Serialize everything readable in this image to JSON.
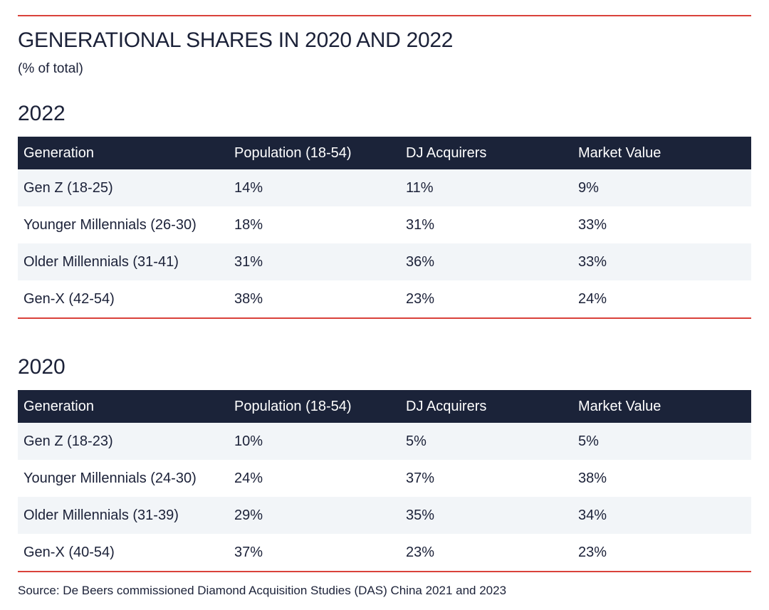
{
  "title": "GENERATIONAL SHARES IN 2020 AND 2022",
  "subtitle": "(% of total)",
  "source": "Source: De Beers commissioned Diamond Acquisition Studies (DAS) China 2021 and 2023",
  "colors": {
    "accent_red": "#d9413a",
    "header_navy": "#1b2339",
    "row_shade": "#f2f5f8"
  },
  "chart_data": [
    {
      "type": "table",
      "title": "2022",
      "columns": [
        "Generation",
        "Population (18-54)",
        "DJ Acquirers",
        "Market Value"
      ],
      "rows": [
        [
          "Gen Z (18-25)",
          "14%",
          "11%",
          "9%"
        ],
        [
          "Younger Millennials (26-30)",
          "18%",
          "31%",
          "33%"
        ],
        [
          "Older Millennials (31-41)",
          "31%",
          "36%",
          "33%"
        ],
        [
          "Gen-X (42-54)",
          "38%",
          "23%",
          "24%"
        ]
      ]
    },
    {
      "type": "table",
      "title": "2020",
      "columns": [
        "Generation",
        "Population (18-54)",
        "DJ Acquirers",
        "Market Value"
      ],
      "rows": [
        [
          "Gen Z (18-23)",
          "10%",
          "5%",
          "5%"
        ],
        [
          "Younger Millennials (24-30)",
          "24%",
          "37%",
          "38%"
        ],
        [
          "Older Millennials (31-39)",
          "29%",
          "35%",
          "34%"
        ],
        [
          "Gen-X (40-54)",
          "37%",
          "23%",
          "23%"
        ]
      ]
    }
  ]
}
